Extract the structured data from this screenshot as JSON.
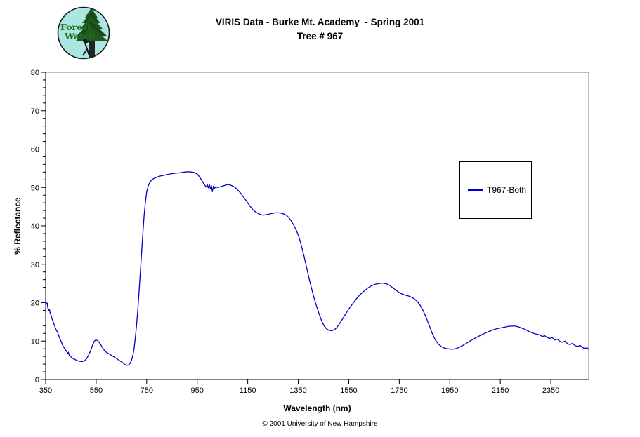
{
  "header": {
    "title_line1": "VIRIS Data - Burke Mt. Academy  - Spring 2001",
    "title_line2": "Tree # 967"
  },
  "logo": {
    "text_line1": "Forest",
    "text_line2": "Watch",
    "bg_color": "#ACE6E3",
    "tree_color": "#1E5A1E",
    "text_color": "#217021"
  },
  "footer": {
    "copyright": "© 2001 University of New Hampshire"
  },
  "colors": {
    "series_line": "#0000CC",
    "plot_border_gray": "#808080",
    "axis_black": "#000000"
  },
  "chart_data": {
    "type": "line",
    "title": "VIRIS Data - Burke Mt. Academy - Spring 2001, Tree # 967",
    "xlabel": "Wavelength (nm)",
    "ylabel": "% Reflectance",
    "xlim": [
      350,
      2500
    ],
    "ylim": [
      0,
      80
    ],
    "x_ticks": [
      350,
      550,
      750,
      950,
      1150,
      1350,
      1550,
      1750,
      1950,
      2150,
      2350
    ],
    "y_ticks": [
      0,
      10,
      20,
      30,
      40,
      50,
      60,
      70,
      80
    ],
    "y_minor_step": 2,
    "grid": false,
    "legend": {
      "position": "right-middle",
      "entries": [
        {
          "label": "T967-Both",
          "color": "#0000CC"
        }
      ]
    },
    "series": [
      {
        "name": "T967-Both",
        "color": "#0000CC",
        "points": [
          [
            350,
            20.5
          ],
          [
            353,
            19.6
          ],
          [
            356,
            19.9
          ],
          [
            359,
            18.6
          ],
          [
            362,
            18.0
          ],
          [
            365,
            18.3
          ],
          [
            368,
            17.2
          ],
          [
            371,
            16.8
          ],
          [
            374,
            16.1
          ],
          [
            377,
            15.5
          ],
          [
            380,
            15.0
          ],
          [
            383,
            14.4
          ],
          [
            386,
            13.9
          ],
          [
            389,
            13.3
          ],
          [
            392,
            12.9
          ],
          [
            395,
            12.5
          ],
          [
            398,
            12.1
          ],
          [
            401,
            11.6
          ],
          [
            404,
            11.0
          ],
          [
            407,
            10.5
          ],
          [
            410,
            10.1
          ],
          [
            413,
            9.6
          ],
          [
            416,
            9.1
          ],
          [
            419,
            8.7
          ],
          [
            422,
            8.4
          ],
          [
            425,
            8.1
          ],
          [
            428,
            7.8
          ],
          [
            431,
            7.5
          ],
          [
            434,
            7.2
          ],
          [
            437,
            6.8
          ],
          [
            440,
            7.1
          ],
          [
            443,
            6.4
          ],
          [
            446,
            6.2
          ],
          [
            450,
            5.9
          ],
          [
            455,
            5.6
          ],
          [
            460,
            5.4
          ],
          [
            466,
            5.2
          ],
          [
            472,
            5.0
          ],
          [
            480,
            4.8
          ],
          [
            488,
            4.7
          ],
          [
            496,
            4.7
          ],
          [
            504,
            4.9
          ],
          [
            512,
            5.4
          ],
          [
            520,
            6.3
          ],
          [
            528,
            7.5
          ],
          [
            536,
            9.0
          ],
          [
            542,
            9.9
          ],
          [
            548,
            10.3
          ],
          [
            554,
            10.2
          ],
          [
            560,
            9.8
          ],
          [
            566,
            9.3
          ],
          [
            572,
            8.6
          ],
          [
            578,
            8.0
          ],
          [
            585,
            7.4
          ],
          [
            592,
            7.0
          ],
          [
            600,
            6.7
          ],
          [
            610,
            6.3
          ],
          [
            620,
            5.9
          ],
          [
            630,
            5.5
          ],
          [
            640,
            5.0
          ],
          [
            650,
            4.6
          ],
          [
            658,
            4.2
          ],
          [
            666,
            3.8
          ],
          [
            672,
            3.7
          ],
          [
            678,
            3.8
          ],
          [
            684,
            4.2
          ],
          [
            690,
            5.0
          ],
          [
            695,
            6.2
          ],
          [
            700,
            8.0
          ],
          [
            705,
            10.8
          ],
          [
            710,
            14.2
          ],
          [
            715,
            18.3
          ],
          [
            720,
            23.0
          ],
          [
            725,
            28.0
          ],
          [
            730,
            33.2
          ],
          [
            735,
            38.2
          ],
          [
            740,
            42.8
          ],
          [
            745,
            46.3
          ],
          [
            750,
            48.8
          ],
          [
            756,
            50.4
          ],
          [
            762,
            51.3
          ],
          [
            770,
            52.0
          ],
          [
            780,
            52.4
          ],
          [
            790,
            52.7
          ],
          [
            805,
            53.0
          ],
          [
            820,
            53.2
          ],
          [
            840,
            53.5
          ],
          [
            860,
            53.7
          ],
          [
            880,
            53.8
          ],
          [
            900,
            54.0
          ],
          [
            915,
            54.1
          ],
          [
            930,
            54.0
          ],
          [
            942,
            53.8
          ],
          [
            952,
            53.4
          ],
          [
            962,
            52.5
          ],
          [
            972,
            51.4
          ],
          [
            980,
            50.6
          ],
          [
            986,
            50.1
          ],
          [
            990,
            50.7
          ],
          [
            994,
            49.9
          ],
          [
            998,
            50.8
          ],
          [
            1002,
            49.7
          ],
          [
            1006,
            50.5
          ],
          [
            1010,
            48.9
          ],
          [
            1014,
            50.3
          ],
          [
            1018,
            49.8
          ],
          [
            1024,
            50.1
          ],
          [
            1032,
            50.0
          ],
          [
            1042,
            50.2
          ],
          [
            1052,
            50.4
          ],
          [
            1062,
            50.6
          ],
          [
            1072,
            50.8
          ],
          [
            1082,
            50.6
          ],
          [
            1092,
            50.3
          ],
          [
            1102,
            49.9
          ],
          [
            1112,
            49.2
          ],
          [
            1122,
            48.5
          ],
          [
            1132,
            47.6
          ],
          [
            1142,
            46.7
          ],
          [
            1152,
            45.8
          ],
          [
            1162,
            44.9
          ],
          [
            1172,
            44.1
          ],
          [
            1182,
            43.6
          ],
          [
            1192,
            43.2
          ],
          [
            1202,
            42.9
          ],
          [
            1212,
            42.8
          ],
          [
            1222,
            42.9
          ],
          [
            1232,
            43.0
          ],
          [
            1242,
            43.2
          ],
          [
            1252,
            43.3
          ],
          [
            1262,
            43.4
          ],
          [
            1272,
            43.4
          ],
          [
            1282,
            43.3
          ],
          [
            1292,
            43.1
          ],
          [
            1302,
            42.8
          ],
          [
            1312,
            42.2
          ],
          [
            1322,
            41.3
          ],
          [
            1332,
            40.2
          ],
          [
            1342,
            38.9
          ],
          [
            1352,
            37.2
          ],
          [
            1362,
            35.0
          ],
          [
            1372,
            32.4
          ],
          [
            1382,
            29.5
          ],
          [
            1392,
            26.6
          ],
          [
            1402,
            23.9
          ],
          [
            1412,
            21.4
          ],
          [
            1422,
            19.2
          ],
          [
            1432,
            17.2
          ],
          [
            1442,
            15.4
          ],
          [
            1452,
            14.0
          ],
          [
            1462,
            13.2
          ],
          [
            1472,
            12.8
          ],
          [
            1482,
            12.7
          ],
          [
            1492,
            12.9
          ],
          [
            1502,
            13.5
          ],
          [
            1512,
            14.4
          ],
          [
            1522,
            15.4
          ],
          [
            1535,
            16.8
          ],
          [
            1550,
            18.3
          ],
          [
            1565,
            19.7
          ],
          [
            1580,
            21.0
          ],
          [
            1595,
            22.1
          ],
          [
            1610,
            23.0
          ],
          [
            1625,
            23.8
          ],
          [
            1640,
            24.4
          ],
          [
            1655,
            24.8
          ],
          [
            1670,
            25.0
          ],
          [
            1685,
            25.1
          ],
          [
            1700,
            24.9
          ],
          [
            1712,
            24.5
          ],
          [
            1724,
            23.9
          ],
          [
            1736,
            23.3
          ],
          [
            1748,
            22.7
          ],
          [
            1760,
            22.3
          ],
          [
            1772,
            22.0
          ],
          [
            1784,
            21.8
          ],
          [
            1796,
            21.5
          ],
          [
            1808,
            21.1
          ],
          [
            1820,
            20.4
          ],
          [
            1832,
            19.4
          ],
          [
            1844,
            18.0
          ],
          [
            1856,
            16.2
          ],
          [
            1868,
            14.2
          ],
          [
            1880,
            12.1
          ],
          [
            1892,
            10.4
          ],
          [
            1904,
            9.3
          ],
          [
            1916,
            8.6
          ],
          [
            1928,
            8.2
          ],
          [
            1940,
            8.0
          ],
          [
            1952,
            7.9
          ],
          [
            1964,
            7.9
          ],
          [
            1976,
            8.1
          ],
          [
            1988,
            8.4
          ],
          [
            2000,
            8.8
          ],
          [
            2015,
            9.4
          ],
          [
            2030,
            10.0
          ],
          [
            2045,
            10.6
          ],
          [
            2060,
            11.1
          ],
          [
            2075,
            11.6
          ],
          [
            2090,
            12.1
          ],
          [
            2105,
            12.5
          ],
          [
            2120,
            12.9
          ],
          [
            2135,
            13.2
          ],
          [
            2150,
            13.4
          ],
          [
            2165,
            13.6
          ],
          [
            2180,
            13.8
          ],
          [
            2195,
            13.9
          ],
          [
            2210,
            13.9
          ],
          [
            2222,
            13.7
          ],
          [
            2234,
            13.4
          ],
          [
            2246,
            13.1
          ],
          [
            2258,
            12.7
          ],
          [
            2270,
            12.3
          ],
          [
            2282,
            12.0
          ],
          [
            2294,
            11.8
          ],
          [
            2306,
            11.6
          ],
          [
            2316,
            11.2
          ],
          [
            2326,
            11.4
          ],
          [
            2336,
            10.9
          ],
          [
            2346,
            10.7
          ],
          [
            2356,
            10.9
          ],
          [
            2366,
            10.3
          ],
          [
            2376,
            10.5
          ],
          [
            2386,
            9.9
          ],
          [
            2396,
            9.7
          ],
          [
            2406,
            10.0
          ],
          [
            2416,
            9.3
          ],
          [
            2426,
            9.1
          ],
          [
            2436,
            9.4
          ],
          [
            2446,
            8.8
          ],
          [
            2456,
            8.6
          ],
          [
            2466,
            8.9
          ],
          [
            2476,
            8.3
          ],
          [
            2486,
            8.1
          ],
          [
            2493,
            8.3
          ],
          [
            2500,
            7.8
          ]
        ]
      }
    ]
  }
}
